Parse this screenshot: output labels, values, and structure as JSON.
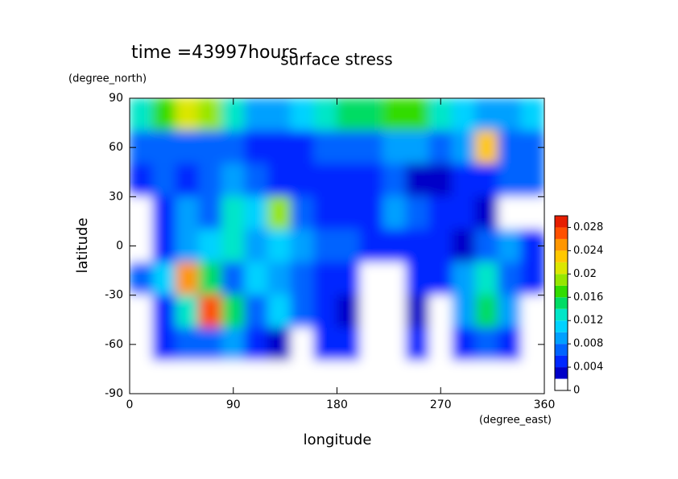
{
  "chart_data": {
    "type": "contour",
    "title": "surface stress",
    "subtitle": "time =43997hours",
    "x_label": "longitude",
    "y_label": "latitude",
    "x_unit": "(degree_east)",
    "y_unit": "(degree_north)",
    "x": [
      10,
      30,
      50,
      70,
      90,
      110,
      130,
      150,
      170,
      190,
      210,
      230,
      250,
      270,
      290,
      310,
      330,
      350
    ],
    "y": [
      80,
      60,
      40,
      20,
      0,
      -20,
      -40,
      -60,
      -80
    ],
    "values": [
      [
        0.012,
        0.016,
        0.02,
        0.018,
        0.012,
        0.008,
        0.008,
        0.01,
        0.012,
        0.014,
        0.014,
        0.016,
        0.016,
        0.012,
        0.01,
        0.008,
        0.008,
        0.01
      ],
      [
        0.006,
        0.006,
        0.006,
        0.006,
        0.006,
        0.004,
        0.004,
        0.004,
        0.006,
        0.006,
        0.006,
        0.008,
        0.008,
        0.006,
        0.008,
        0.022,
        0.006,
        0.006
      ],
      [
        0.004,
        0.006,
        0.004,
        0.006,
        0.008,
        0.006,
        0.004,
        0.004,
        0.004,
        0.004,
        0.004,
        0.006,
        0.002,
        0.002,
        0.004,
        0.004,
        0.006,
        0.006
      ],
      [
        0.001,
        0.004,
        0.008,
        0.006,
        0.012,
        0.01,
        0.018,
        0.006,
        0.004,
        0.004,
        0.004,
        0.008,
        0.006,
        0.004,
        0.004,
        0.002,
        0.001,
        0.001
      ],
      [
        0.001,
        0.004,
        0.008,
        0.01,
        0.012,
        0.008,
        0.01,
        0.008,
        0.006,
        0.006,
        0.004,
        0.004,
        0.004,
        0.004,
        0.002,
        0.006,
        0.008,
        0.004
      ],
      [
        0.006,
        0.01,
        0.024,
        0.014,
        0.006,
        0.01,
        0.008,
        0.006,
        0.004,
        0.004,
        0.001,
        0.001,
        0.004,
        0.004,
        0.008,
        0.012,
        0.006,
        0.004
      ],
      [
        0.001,
        0.004,
        0.012,
        0.026,
        0.014,
        0.006,
        0.01,
        0.006,
        0.004,
        0.002,
        0.001,
        0.001,
        0.002,
        0.001,
        0.008,
        0.014,
        0.008,
        0.001
      ],
      [
        0.001,
        0.004,
        0.006,
        0.006,
        0.008,
        0.004,
        0.002,
        0.001,
        0.004,
        0.004,
        0.001,
        0.001,
        0.004,
        0.001,
        0.004,
        0.006,
        0.004,
        0.001
      ],
      [
        0,
        0,
        0,
        0,
        0,
        0,
        0,
        0,
        0,
        0,
        0,
        0,
        0,
        0,
        0,
        0,
        0,
        0
      ]
    ],
    "xlim": [
      0,
      360
    ],
    "ylim": [
      -90,
      90
    ],
    "xticks": [
      0,
      90,
      180,
      270,
      360
    ],
    "yticks": [
      -90,
      -60,
      -30,
      0,
      30,
      60,
      90
    ],
    "colorbar": {
      "lim": [
        0,
        0.03
      ],
      "levels": [
        0,
        0.002,
        0.004,
        0.006,
        0.008,
        0.01,
        0.012,
        0.014,
        0.016,
        0.018,
        0.02,
        0.022,
        0.024,
        0.026,
        0.028,
        0.03
      ],
      "colors": [
        "#ffffff",
        "#0000c8",
        "#0028ff",
        "#0064ff",
        "#00a0ff",
        "#00d2ff",
        "#00e6c8",
        "#00dc64",
        "#32dc00",
        "#96e600",
        "#dce600",
        "#ffc800",
        "#ff9600",
        "#ff5000",
        "#e61e00"
      ],
      "ticks": [
        0,
        0.004,
        0.008,
        0.012,
        0.016,
        0.02,
        0.024,
        0.028
      ]
    }
  }
}
